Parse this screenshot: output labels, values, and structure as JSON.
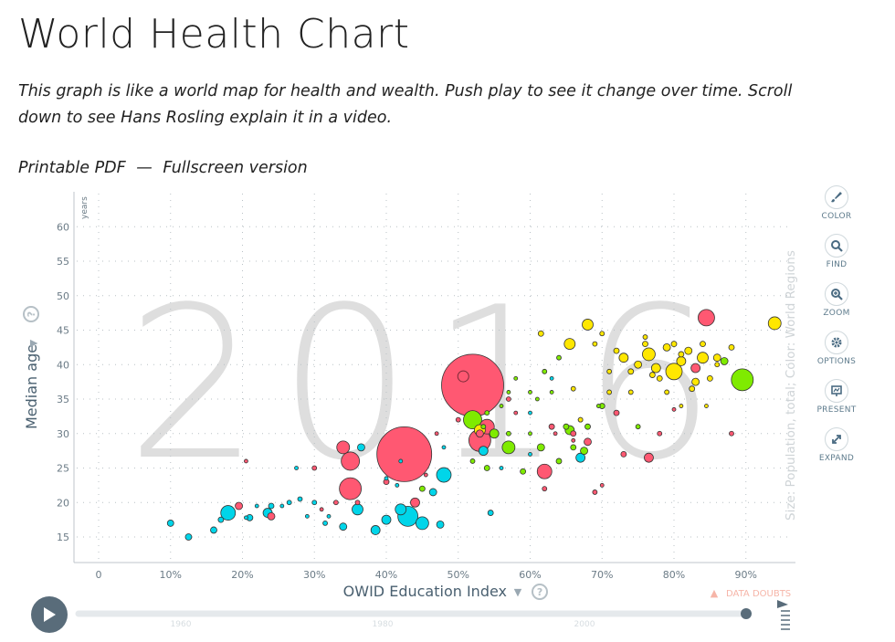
{
  "page": {
    "title": "World Health Chart",
    "intro": "This graph is like a world map for health and wealth. Push play to see it change over time. Scroll down to see Hans Rosling explain it in a video.",
    "link_pdf": "Printable PDF",
    "separator": "—",
    "link_fullscreen": "Fullscreen version"
  },
  "toolbar": {
    "items": [
      {
        "label": "COLOR",
        "icon": "paintbrush-icon"
      },
      {
        "label": "FIND",
        "icon": "search-icon"
      },
      {
        "label": "ZOOM",
        "icon": "zoom-in-icon"
      },
      {
        "label": "OPTIONS",
        "icon": "gear-icon"
      },
      {
        "label": "PRESENT",
        "icon": "presentation-icon"
      },
      {
        "label": "EXPAND",
        "icon": "expand-icon"
      }
    ]
  },
  "colors": {
    "axis_text": "#6b7b86",
    "year_watermark": "#dedede",
    "africa": "#00d5e9",
    "asia": "#ff5872",
    "americas": "#7feb00",
    "europe": "#ffe700",
    "play_button": "#596c7a"
  },
  "timeline": {
    "ticks": [
      "1960",
      "1980",
      "2000"
    ],
    "current": "2016",
    "data_doubts": "DATA DOUBTS"
  },
  "chart_data": {
    "type": "scatter",
    "year_label": "2016",
    "xlabel": "OWID Education Index",
    "ylabel": "Median age",
    "y_unit": "years",
    "size_color_label": "Size: Population, total; Color: World Regions",
    "x_ticks": [
      "0",
      "10%",
      "20%",
      "30%",
      "40%",
      "50%",
      "60%",
      "70%",
      "80%",
      "90%"
    ],
    "y_ticks": [
      "15",
      "20",
      "25",
      "30",
      "35",
      "40",
      "45",
      "50",
      "55",
      "60"
    ],
    "xlim": [
      0,
      97
    ],
    "ylim": [
      12,
      65
    ],
    "grid": true,
    "points": [
      [
        52,
        37,
        34,
        "asia"
      ],
      [
        42.5,
        27,
        30,
        "asia"
      ],
      [
        35,
        22,
        12,
        "asia"
      ],
      [
        35,
        26,
        10,
        "asia"
      ],
      [
        34,
        28,
        7,
        "asia"
      ],
      [
        53,
        29,
        12,
        "asia"
      ],
      [
        54,
        31,
        8,
        "asia"
      ],
      [
        62,
        24.5,
        8,
        "asia"
      ],
      [
        84.5,
        46.8,
        9,
        "asia"
      ],
      [
        76.5,
        26.5,
        5,
        "asia"
      ],
      [
        83,
        39.5,
        5,
        "asia"
      ],
      [
        68,
        28.8,
        4,
        "asia"
      ],
      [
        63,
        31,
        3,
        "asia"
      ],
      [
        66,
        30,
        3,
        "asia"
      ],
      [
        72,
        33,
        3,
        "asia"
      ],
      [
        73,
        27,
        3,
        "asia"
      ],
      [
        78,
        30,
        2.5,
        "asia"
      ],
      [
        88,
        30,
        2.5,
        "asia"
      ],
      [
        57,
        35,
        2.5,
        "asia"
      ],
      [
        58,
        33,
        2,
        "asia"
      ],
      [
        44,
        20,
        5,
        "asia"
      ],
      [
        40,
        23,
        3,
        "asia"
      ],
      [
        36,
        20,
        2.5,
        "asia"
      ],
      [
        30,
        25,
        2.5,
        "asia"
      ],
      [
        24,
        18,
        4,
        "asia"
      ],
      [
        19.5,
        19.5,
        4,
        "asia"
      ],
      [
        20.5,
        26,
        2,
        "asia"
      ],
      [
        62,
        22,
        2.5,
        "asia"
      ],
      [
        69,
        21.5,
        2.5,
        "asia"
      ],
      [
        70,
        22.5,
        2,
        "asia"
      ],
      [
        53,
        30,
        4,
        "asia"
      ],
      [
        50,
        32,
        2.5,
        "asia"
      ],
      [
        47,
        30,
        2,
        "asia"
      ],
      [
        63.5,
        30,
        2,
        "asia"
      ],
      [
        66,
        29,
        2,
        "asia"
      ],
      [
        45.5,
        24,
        2,
        "asia"
      ],
      [
        33,
        20,
        2.5,
        "asia"
      ],
      [
        31,
        19,
        2,
        "asia"
      ],
      [
        80,
        33.5,
        2,
        "asia"
      ],
      [
        48,
        24,
        8,
        "africa"
      ],
      [
        43,
        18,
        11,
        "africa"
      ],
      [
        42,
        19,
        6,
        "africa"
      ],
      [
        45,
        17,
        7,
        "africa"
      ],
      [
        36,
        19,
        6,
        "africa"
      ],
      [
        18,
        18.5,
        8,
        "africa"
      ],
      [
        23.5,
        18.5,
        5,
        "africa"
      ],
      [
        38.5,
        16,
        5,
        "africa"
      ],
      [
        53.5,
        27.5,
        5,
        "africa"
      ],
      [
        40,
        17.5,
        5,
        "africa"
      ],
      [
        24,
        19.5,
        3,
        "africa"
      ],
      [
        21,
        17.8,
        3.5,
        "africa"
      ],
      [
        16,
        16,
        3.5,
        "africa"
      ],
      [
        10,
        17,
        3.5,
        "africa"
      ],
      [
        12.5,
        15,
        3.5,
        "africa"
      ],
      [
        34,
        16.5,
        4,
        "africa"
      ],
      [
        47.5,
        16.8,
        4,
        "africa"
      ],
      [
        46.5,
        21.5,
        4,
        "africa"
      ],
      [
        36.5,
        28,
        4,
        "africa"
      ],
      [
        67,
        26.5,
        5,
        "africa"
      ],
      [
        54.5,
        18.5,
        3,
        "africa"
      ],
      [
        17,
        17.5,
        3,
        "africa"
      ],
      [
        22,
        19.5,
        2,
        "africa"
      ],
      [
        25.5,
        19.5,
        2,
        "africa"
      ],
      [
        26.5,
        20,
        2.5,
        "africa"
      ],
      [
        28,
        20.5,
        2.5,
        "africa"
      ],
      [
        30,
        20,
        2.5,
        "africa"
      ],
      [
        31.5,
        17,
        2.5,
        "africa"
      ],
      [
        32,
        18,
        2,
        "africa"
      ],
      [
        29,
        18,
        2,
        "africa"
      ],
      [
        20.5,
        17.8,
        2,
        "africa"
      ],
      [
        41.5,
        22.5,
        2,
        "africa"
      ],
      [
        56,
        25,
        2,
        "africa"
      ],
      [
        60,
        27,
        2,
        "africa"
      ],
      [
        63,
        38,
        2,
        "africa"
      ],
      [
        60,
        33,
        2,
        "africa"
      ],
      [
        48,
        28,
        2,
        "africa"
      ],
      [
        40,
        23.5,
        2,
        "africa"
      ],
      [
        42,
        26,
        2,
        "africa"
      ],
      [
        27.5,
        25,
        2,
        "africa"
      ],
      [
        89.5,
        37.8,
        12,
        "americas"
      ],
      [
        52,
        32,
        10,
        "americas"
      ],
      [
        57,
        28,
        7,
        "americas"
      ],
      [
        55,
        30,
        5,
        "americas"
      ],
      [
        65.5,
        30.5,
        5,
        "americas"
      ],
      [
        61.5,
        28,
        4,
        "americas"
      ],
      [
        67.5,
        27.5,
        4,
        "americas"
      ],
      [
        87,
        40.5,
        4,
        "americas"
      ],
      [
        54,
        25,
        3,
        "americas"
      ],
      [
        59,
        24.5,
        3,
        "americas"
      ],
      [
        64,
        26,
        3,
        "americas"
      ],
      [
        66,
        28,
        3,
        "americas"
      ],
      [
        68,
        31,
        3,
        "americas"
      ],
      [
        65,
        31,
        3,
        "americas"
      ],
      [
        67,
        32,
        2.5,
        "americas"
      ],
      [
        70,
        34,
        3,
        "americas"
      ],
      [
        75,
        31,
        2.5,
        "americas"
      ],
      [
        45,
        22,
        3,
        "americas"
      ],
      [
        52,
        26,
        2.5,
        "americas"
      ],
      [
        57,
        30,
        2.5,
        "americas"
      ],
      [
        54,
        33,
        2.5,
        "americas"
      ],
      [
        60,
        36,
        2,
        "americas"
      ],
      [
        63,
        36,
        2,
        "americas"
      ],
      [
        58,
        38,
        2,
        "americas"
      ],
      [
        56,
        34,
        2,
        "americas"
      ],
      [
        62,
        39,
        2.5,
        "americas"
      ],
      [
        64,
        41,
        2.5,
        "americas"
      ],
      [
        61,
        35,
        2,
        "americas"
      ],
      [
        60,
        30,
        2,
        "americas"
      ],
      [
        53.5,
        31,
        2.5,
        "americas"
      ],
      [
        69.5,
        34,
        2,
        "americas"
      ],
      [
        57,
        36,
        2,
        "americas"
      ],
      [
        53,
        30.5,
        6,
        "europe"
      ],
      [
        80,
        39,
        9,
        "europe"
      ],
      [
        76.5,
        41.5,
        7,
        "europe"
      ],
      [
        94,
        46,
        7,
        "europe"
      ],
      [
        68,
        45.8,
        6,
        "europe"
      ],
      [
        65.5,
        43,
        6,
        "europe"
      ],
      [
        81,
        40.5,
        5,
        "europe"
      ],
      [
        84,
        41,
        6,
        "europe"
      ],
      [
        77.5,
        39.5,
        5,
        "europe"
      ],
      [
        73,
        41,
        5,
        "europe"
      ],
      [
        75,
        40,
        4,
        "europe"
      ],
      [
        82,
        42,
        4,
        "europe"
      ],
      [
        86,
        41,
        4,
        "europe"
      ],
      [
        79,
        42.5,
        4,
        "europe"
      ],
      [
        83,
        37.5,
        4,
        "europe"
      ],
      [
        74,
        39,
        3,
        "europe"
      ],
      [
        78,
        38,
        3,
        "europe"
      ],
      [
        76,
        43,
        3,
        "europe"
      ],
      [
        80,
        43,
        3,
        "europe"
      ],
      [
        81,
        41.5,
        3,
        "europe"
      ],
      [
        85,
        38,
        3,
        "europe"
      ],
      [
        82.5,
        36.5,
        3,
        "europe"
      ],
      [
        72,
        42,
        3,
        "europe"
      ],
      [
        70,
        44.5,
        2.5,
        "europe"
      ],
      [
        71,
        39,
        2.5,
        "europe"
      ],
      [
        86,
        40,
        2.5,
        "europe"
      ],
      [
        79,
        36,
        2.5,
        "europe"
      ],
      [
        84,
        43,
        3,
        "europe"
      ],
      [
        77,
        38.5,
        3,
        "europe"
      ],
      [
        66,
        36.5,
        2.5,
        "europe"
      ],
      [
        71,
        36,
        2.5,
        "europe"
      ],
      [
        61.5,
        44.5,
        3,
        "europe"
      ],
      [
        88,
        42.5,
        3,
        "europe"
      ],
      [
        76,
        44,
        2.5,
        "europe"
      ],
      [
        67,
        32,
        2.5,
        "europe"
      ],
      [
        84.5,
        34,
        2,
        "europe"
      ],
      [
        81,
        34,
        2,
        "europe"
      ],
      [
        69,
        43,
        2.5,
        "europe"
      ],
      [
        74,
        36,
        2.5,
        "europe"
      ]
    ]
  }
}
